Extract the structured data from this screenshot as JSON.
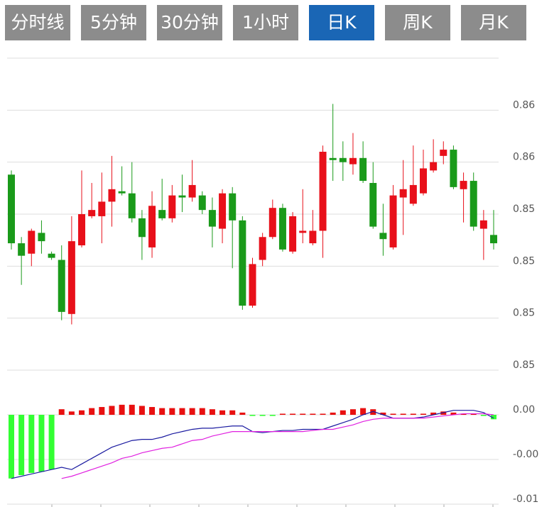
{
  "tabs": [
    "分时线",
    "5分钟",
    "30分钟",
    "1小时",
    "日K",
    "周K",
    "月K"
  ],
  "active_tab": 4,
  "chart_data": [
    {
      "type": "candlestick",
      "up_color": "#e8101a",
      "down_color": "#1a9a1a",
      "grid": true,
      "ylim": [
        0.8468,
        0.8618
      ],
      "yticks": [
        {
          "value": 0.8593,
          "label": "0.86"
        },
        {
          "value": 0.8568,
          "label": "0.86"
        },
        {
          "value": 0.8543,
          "label": "0.85"
        },
        {
          "value": 0.8518,
          "label": "0.85"
        },
        {
          "value": 0.8493,
          "label": "0.85"
        },
        {
          "value": 0.8468,
          "label": "0.85"
        }
      ],
      "open": [
        0.8562,
        0.8529,
        0.8524,
        0.8534,
        0.8524,
        0.8521,
        0.8495,
        0.8528,
        0.8542,
        0.8542,
        0.8549,
        0.8554,
        0.8553,
        0.8541,
        0.8527,
        0.8545,
        0.8541,
        0.8552,
        0.8551,
        0.8552,
        0.8545,
        0.8536,
        0.8553,
        0.854,
        0.8499,
        0.8521,
        0.8532,
        0.8546,
        0.8525,
        0.8534,
        0.8529,
        0.8535,
        0.857,
        0.857,
        0.8567,
        0.857,
        0.8558,
        0.8534,
        0.8527,
        0.8551,
        0.8548,
        0.8553,
        0.8564,
        0.8571,
        0.8574,
        0.8555,
        0.8559,
        0.8536,
        0.8533
      ],
      "high": [
        0.8564,
        0.8532,
        0.8536,
        0.854,
        0.8525,
        0.8528,
        0.8542,
        0.8564,
        0.8558,
        0.8563,
        0.8571,
        0.8566,
        0.8568,
        0.8545,
        0.8554,
        0.856,
        0.8557,
        0.8562,
        0.8569,
        0.8554,
        0.8551,
        0.8555,
        0.8556,
        0.8542,
        0.8522,
        0.8534,
        0.855,
        0.8548,
        0.8544,
        0.8555,
        0.8545,
        0.8576,
        0.8596,
        0.8578,
        0.8582,
        0.8578,
        0.8568,
        0.8548,
        0.8557,
        0.8569,
        0.8576,
        0.8574,
        0.8579,
        0.8578,
        0.8576,
        0.8563,
        0.8563,
        0.8545,
        0.8545
      ],
      "low": [
        0.8526,
        0.8509,
        0.8518,
        0.8524,
        0.8521,
        0.8492,
        0.849,
        0.8527,
        0.8541,
        0.8529,
        0.8537,
        0.8552,
        0.8539,
        0.8521,
        0.8522,
        0.854,
        0.8539,
        0.8544,
        0.8549,
        0.8543,
        0.8527,
        0.8529,
        0.8517,
        0.8497,
        0.8498,
        0.8518,
        0.8531,
        0.8525,
        0.8524,
        0.8529,
        0.8528,
        0.8522,
        0.8559,
        0.8559,
        0.8562,
        0.8558,
        0.8536,
        0.8523,
        0.8526,
        0.8533,
        0.8547,
        0.8552,
        0.8563,
        0.8567,
        0.8555,
        0.8539,
        0.8535,
        0.8521,
        0.8526
      ],
      "close": [
        0.8529,
        0.8523,
        0.8535,
        0.853,
        0.8522,
        0.8496,
        0.853,
        0.8543,
        0.8545,
        0.8549,
        0.8555,
        0.8553,
        0.8541,
        0.8532,
        0.8547,
        0.8541,
        0.8552,
        0.8551,
        0.8557,
        0.8545,
        0.8537,
        0.8553,
        0.854,
        0.8499,
        0.8519,
        0.8532,
        0.8546,
        0.8526,
        0.8542,
        0.8535,
        0.8535,
        0.8573,
        0.8569,
        0.8568,
        0.857,
        0.8559,
        0.8537,
        0.8531,
        0.8552,
        0.8555,
        0.8557,
        0.8565,
        0.8568,
        0.8574,
        0.8556,
        0.8559,
        0.8537,
        0.854,
        0.8529
      ]
    },
    {
      "type": "macd",
      "grid": true,
      "ylim": [
        -0.008,
        0.004
      ],
      "yticks": [
        {
          "value": 0,
          "label": "0.00"
        },
        {
          "value": -0.004,
          "label": "-0.00"
        },
        {
          "value": -0.008,
          "label": "-0.01"
        }
      ],
      "series": [
        {
          "type": "bar",
          "up_color": "#e81010",
          "down_color": "#33ff33",
          "values": [
            -0.0057,
            -0.0054,
            -0.0052,
            -0.0051,
            -0.0049,
            0.0005,
            0.0003,
            0.0004,
            0.0006,
            0.0007,
            0.0008,
            0.0009,
            0.0009,
            0.0008,
            0.0007,
            0.0006,
            0.0006,
            0.0006,
            0.0006,
            0.0006,
            0.0005,
            0.0004,
            0.0004,
            0.0002,
            -0.0001,
            -0.0001,
            -0.0001,
            0.0001,
            0.0001,
            0.0001,
            0.0001,
            0.0001,
            0.0002,
            0.0004,
            0.0005,
            0.0006,
            0.0005,
            0.0002,
            0.0001,
            0.0001,
            0.0001,
            0.0001,
            0.0002,
            0.0003,
            0.0002,
            0.0001,
            0.0001,
            -0.0001,
            -0.0004
          ]
        },
        {
          "type": "line",
          "color": "#1a1aa0",
          "values": [
            -0.0057,
            -0.0055,
            -0.0053,
            -0.0051,
            -0.0049,
            -0.0047,
            -0.0049,
            -0.0044,
            -0.0039,
            -0.0034,
            -0.0029,
            -0.0026,
            -0.0023,
            -0.0022,
            -0.0022,
            -0.002,
            -0.0017,
            -0.0015,
            -0.0013,
            -0.0012,
            -0.0012,
            -0.0011,
            -0.001,
            -0.001,
            -0.0015,
            -0.0016,
            -0.0015,
            -0.0014,
            -0.0014,
            -0.0013,
            -0.0013,
            -0.0013,
            -0.001,
            -0.0007,
            -0.0004,
            0,
            0.0003,
            0,
            -0.0003,
            -0.0003,
            -0.0003,
            -0.0002,
            0,
            0.0002,
            0.0004,
            0.0004,
            0.0004,
            0.0002,
            -0.0003
          ]
        },
        {
          "type": "line",
          "color": "#e020e0",
          "values": [
            null,
            null,
            null,
            null,
            null,
            -0.0057,
            -0.0055,
            -0.0052,
            -0.0049,
            -0.0046,
            -0.0043,
            -0.0039,
            -0.0037,
            -0.0034,
            -0.0032,
            -0.003,
            -0.0029,
            -0.0026,
            -0.0023,
            -0.0022,
            -0.0019,
            -0.0017,
            -0.0015,
            -0.0015,
            -0.0015,
            -0.0015,
            -0.0015,
            -0.0015,
            -0.0015,
            -0.0015,
            -0.0014,
            -0.0013,
            -0.0013,
            -0.0011,
            -0.0009,
            -0.0006,
            -0.0004,
            -0.0003,
            -0.0003,
            -0.0003,
            -0.0003,
            -0.0003,
            -0.0002,
            -0.0001,
            0,
            0.0001,
            0.0001,
            0.0001,
            0
          ]
        }
      ]
    }
  ]
}
